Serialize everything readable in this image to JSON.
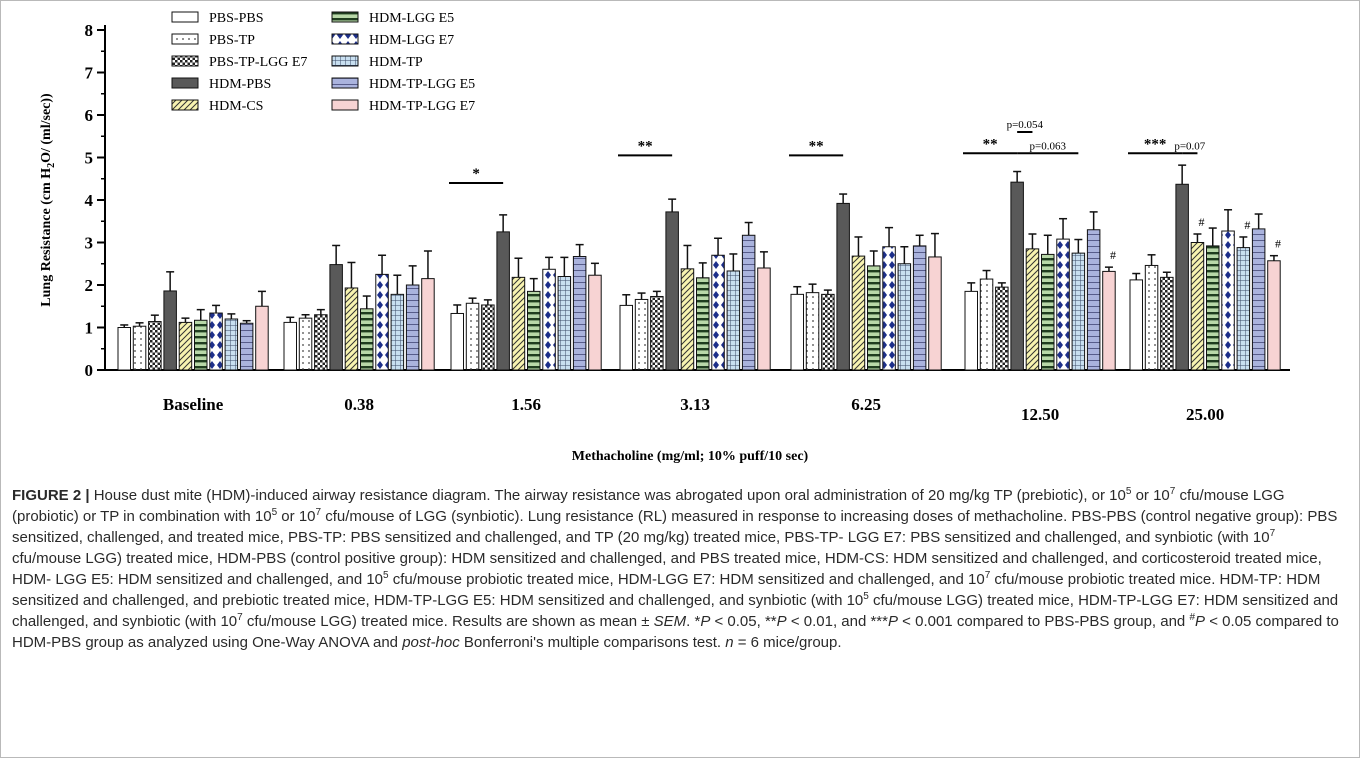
{
  "chart_data": {
    "type": "bar",
    "ylabel_parts": [
      "Lung Resistance (cm H",
      "2",
      "O/ (ml/sec))"
    ],
    "xlabel": "Methacholine (mg/ml; 10% puff/10 sec)",
    "ylim": [
      0,
      8
    ],
    "yticks": [
      "0",
      "1",
      "2",
      "3",
      "4",
      "5",
      "6",
      "7",
      "8"
    ],
    "categories": [
      "Baseline",
      "0.38",
      "1.56",
      "3.13",
      "6.25",
      "12.50",
      "25.00"
    ],
    "series": [
      {
        "name": "PBS-PBS",
        "fill": "#ffffff",
        "pattern": "none",
        "values": [
          1.0,
          1.12,
          1.33,
          1.52,
          1.78,
          1.85,
          2.12
        ],
        "errors": [
          0.06,
          0.12,
          0.2,
          0.25,
          0.18,
          0.2,
          0.15
        ]
      },
      {
        "name": "PBS-TP",
        "fill": "#ffffff",
        "pattern": "dots",
        "values": [
          1.03,
          1.22,
          1.57,
          1.66,
          1.82,
          2.14,
          2.46
        ],
        "errors": [
          0.08,
          0.08,
          0.12,
          0.15,
          0.2,
          0.2,
          0.25
        ]
      },
      {
        "name": "PBS-TP-LGG E7",
        "fill": "#ffffff",
        "pattern": "checker",
        "values": [
          1.14,
          1.3,
          1.53,
          1.73,
          1.78,
          1.95,
          2.18
        ],
        "errors": [
          0.15,
          0.12,
          0.12,
          0.12,
          0.1,
          0.1,
          0.12
        ]
      },
      {
        "name": "HDM-PBS",
        "fill": "#595959",
        "pattern": "solid",
        "values": [
          1.86,
          2.48,
          3.25,
          3.72,
          3.92,
          4.42,
          4.37
        ],
        "errors": [
          0.45,
          0.45,
          0.4,
          0.3,
          0.22,
          0.25,
          0.45
        ]
      },
      {
        "name": "HDM-CS",
        "fill": "#f7f3b0",
        "pattern": "diagonal",
        "values": [
          1.12,
          1.93,
          2.18,
          2.38,
          2.68,
          2.85,
          3.0
        ],
        "errors": [
          0.1,
          0.6,
          0.45,
          0.55,
          0.45,
          0.35,
          0.2
        ]
      },
      {
        "name": "HDM-LGG E5",
        "fill": "#b8d8a8",
        "pattern": "ladder",
        "values": [
          1.17,
          1.44,
          1.85,
          2.17,
          2.45,
          2.72,
          2.92
        ],
        "errors": [
          0.25,
          0.3,
          0.3,
          0.35,
          0.35,
          0.45,
          0.42
        ]
      },
      {
        "name": "HDM-LGG E7",
        "fill": "#ffffff",
        "pattern": "diamonds",
        "values": [
          1.34,
          2.25,
          2.37,
          2.7,
          2.9,
          3.08,
          3.27
        ],
        "errors": [
          0.18,
          0.45,
          0.28,
          0.4,
          0.45,
          0.48,
          0.5
        ]
      },
      {
        "name": "HDM-TP",
        "fill": "#c8dff0",
        "pattern": "grid",
        "values": [
          1.2,
          1.78,
          2.2,
          2.33,
          2.5,
          2.75,
          2.88
        ],
        "errors": [
          0.12,
          0.45,
          0.45,
          0.4,
          0.4,
          0.32,
          0.25
        ]
      },
      {
        "name": "HDM-TP-LGG E5",
        "fill": "#aab3dd",
        "pattern": "bricks",
        "values": [
          1.1,
          2.0,
          2.67,
          3.17,
          2.92,
          3.3,
          3.32
        ],
        "errors": [
          0.06,
          0.45,
          0.28,
          0.3,
          0.25,
          0.42,
          0.35
        ]
      },
      {
        "name": "HDM-TP-LGG E7",
        "fill": "#f7d3d3",
        "pattern": "solid",
        "values": [
          1.5,
          2.15,
          2.23,
          2.4,
          2.66,
          2.32,
          2.57
        ],
        "errors": [
          0.35,
          0.65,
          0.28,
          0.38,
          0.55,
          0.1,
          0.12
        ]
      }
    ],
    "annotations": [
      {
        "category": "1.56",
        "label": "*",
        "from_series": 0,
        "to_series": 3,
        "y": 4.4
      },
      {
        "category": "3.13",
        "label": "**",
        "from_series": 0,
        "to_series": 3,
        "y": 5.05
      },
      {
        "category": "6.25",
        "label": "**",
        "from_series": 0,
        "to_series": 3,
        "y": 5.05
      },
      {
        "category": "12.50",
        "label": "**",
        "from_series": 0,
        "to_series": 3,
        "y": 5.1
      },
      {
        "category": "12.50",
        "label": "p=0.054",
        "from_series": 3,
        "to_series": 4,
        "y": 5.6
      },
      {
        "category": "12.50",
        "label": "p=0.063",
        "from_series": 3,
        "to_series": 7,
        "y": 5.1
      },
      {
        "category": "25.00",
        "label": "***",
        "from_series": 0,
        "to_series": 3,
        "y": 5.1
      },
      {
        "category": "25.00",
        "label": "p=0.07",
        "from_series": 3,
        "to_series": 4,
        "y": 5.1
      }
    ],
    "hash_marks": [
      {
        "category": "12.50",
        "series": 9,
        "label": "#"
      },
      {
        "category": "25.00",
        "series": 4,
        "label": "#"
      },
      {
        "category": "25.00",
        "series": 7,
        "label": "#"
      },
      {
        "category": "25.00",
        "series": 9,
        "label": "#"
      }
    ]
  },
  "caption": {
    "figure_label": "FIGURE 2 |",
    "segments": [
      {
        "t": " House dust mite (HDM)-induced airway resistance diagram. The airway resistance was abrogated upon oral administration of 20 mg/kg TP (prebiotic), or 10"
      },
      {
        "sup": "5"
      },
      {
        "t": " or 10"
      },
      {
        "sup": "7"
      },
      {
        "t": " cfu/mouse LGG (probiotic) or TP in combination with 10"
      },
      {
        "sup": "5"
      },
      {
        "t": " or 10"
      },
      {
        "sup": "7"
      },
      {
        "t": " cfu/mouse of LGG (synbiotic). Lung resistance (RL) measured in response to increasing doses of methacholine. PBS-PBS (control negative group): PBS sensitized, challenged, and treated mice, PBS-TP: PBS sensitized and challenged, and TP (20 mg/kg) treated mice, PBS-TP- LGG E7: PBS sensitized and challenged, and synbiotic (with 10"
      },
      {
        "sup": "7"
      },
      {
        "t": " cfu/mouse LGG) treated mice, HDM-PBS (control positive group): HDM sensitized and challenged, and PBS treated mice, HDM-CS: HDM sensitized and challenged, and corticosteroid treated mice, HDM- LGG E5: HDM sensitized and challenged, and 10"
      },
      {
        "sup": "5"
      },
      {
        "t": " cfu/mouse probiotic treated mice, HDM-LGG E7: HDM sensitized and challenged, and 10"
      },
      {
        "sup": "7"
      },
      {
        "t": " cfu/mouse probiotic treated mice. HDM-TP: HDM sensitized and challenged, and prebiotic treated mice, HDM-TP-LGG E5: HDM sensitized and challenged, and synbiotic (with 10"
      },
      {
        "sup": "5"
      },
      {
        "t": " cfu/mouse LGG) treated mice, HDM-TP-LGG E7: HDM sensitized and challenged, and synbiotic (with 10"
      },
      {
        "sup": "7"
      },
      {
        "t": " cfu/mouse LGG) treated mice. Results are shown as mean ± "
      },
      {
        "i": "SEM"
      },
      {
        "t": ". *"
      },
      {
        "i": "P"
      },
      {
        "t": " < 0.05, **"
      },
      {
        "i": "P"
      },
      {
        "t": " < 0.01, and ***"
      },
      {
        "i": "P"
      },
      {
        "t": " < 0.001 compared to PBS-PBS group, and "
      },
      {
        "sup": "#"
      },
      {
        "i": "P"
      },
      {
        "t": " < 0.05 compared to HDM-PBS group as analyzed using One-Way ANOVA and "
      },
      {
        "i": "post-hoc"
      },
      {
        "t": " Bonferroni's multiple comparisons test. "
      },
      {
        "i": "n"
      },
      {
        "t": " = 6 mice/group."
      }
    ]
  }
}
